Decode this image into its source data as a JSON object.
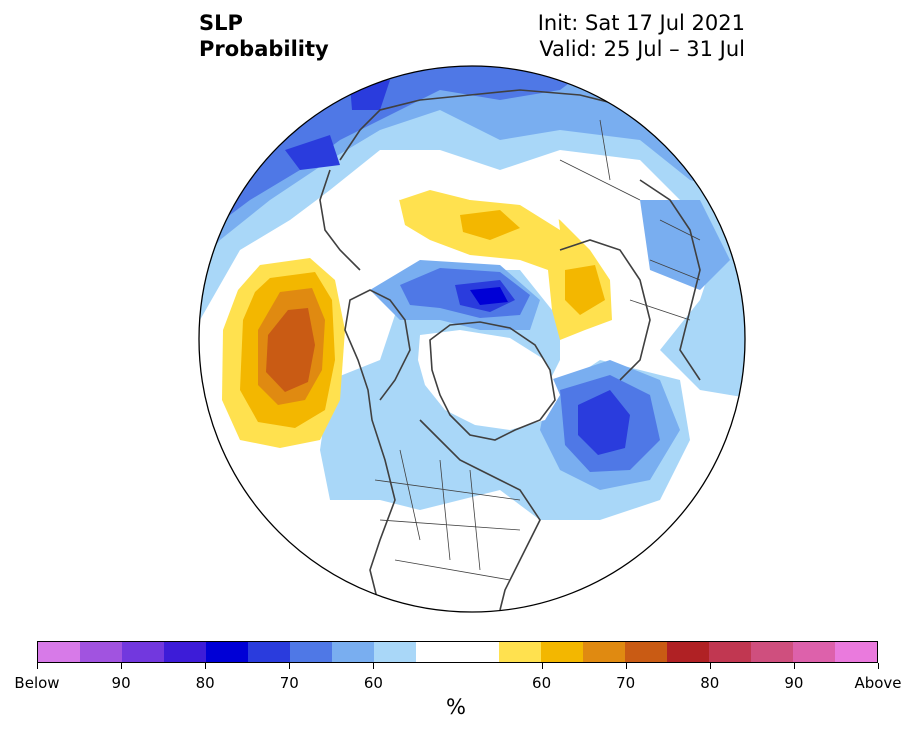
{
  "title": {
    "variable": "SLP",
    "subtitle": "Probability"
  },
  "dates": {
    "init": "Init: Sat 17 Jul 2021",
    "valid": "Valid: 25 Jul – 31 Jul"
  },
  "colorbar": {
    "colors": [
      "#d77ae8",
      "#a153e0",
      "#7238de",
      "#3d1cd8",
      "#0000d6",
      "#2a3cdd",
      "#4f78e6",
      "#79aef0",
      "#a9d7f8",
      "#ffffff",
      "#ffffff",
      "#ffe14f",
      "#f3b700",
      "#e08a11",
      "#c95b14",
      "#b02124",
      "#c13751",
      "#cf4f7e",
      "#dd61ab",
      "#ea7add"
    ],
    "labels": [
      "Below",
      "90",
      "80",
      "70",
      "60",
      "60",
      "70",
      "80",
      "90",
      "Above"
    ],
    "unit": "%"
  },
  "map": {
    "projection": "north-polar-stereographic",
    "features": [
      "coastlines",
      "country-borders",
      "state-borders"
    ]
  }
}
